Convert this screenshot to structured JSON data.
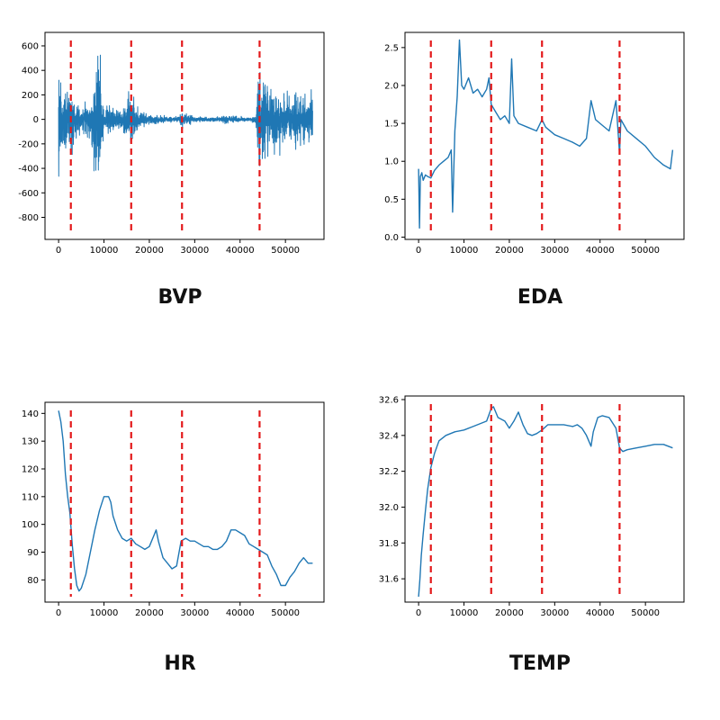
{
  "accent": "#1f77b4",
  "marker_color": "#e31a1c",
  "chart_data": [
    {
      "type": "line",
      "name": "BVP",
      "title": "BVP",
      "xlim": [
        -3000,
        58500
      ],
      "ylim": [
        -980,
        710
      ],
      "xticks": [
        0,
        10000,
        20000,
        30000,
        40000,
        50000
      ],
      "yticks": [
        -800,
        -600,
        -400,
        -200,
        0,
        200,
        400,
        600
      ],
      "markers": [
        2700,
        16000,
        27200,
        44300
      ],
      "signal": "noisy",
      "x": [
        0,
        500,
        1000,
        2000,
        2700,
        3500,
        5000,
        7000,
        8500,
        9000,
        10000,
        12000,
        14000,
        16000,
        17000,
        18000,
        20000,
        22000,
        24000,
        26000,
        27200,
        30000,
        33000,
        36000,
        37500,
        40000,
        42000,
        43500,
        44300,
        46000,
        48000,
        50000,
        52000,
        54000,
        56000
      ],
      "amp": [
        650,
        500,
        420,
        380,
        540,
        200,
        150,
        220,
        720,
        880,
        180,
        130,
        120,
        380,
        150,
        100,
        60,
        50,
        40,
        30,
        90,
        30,
        25,
        30,
        60,
        30,
        25,
        40,
        700,
        380,
        350,
        330,
        320,
        300,
        280
      ]
    },
    {
      "type": "line",
      "name": "EDA",
      "title": "EDA",
      "xlim": [
        -3000,
        58500
      ],
      "ylim": [
        -0.03,
        2.7
      ],
      "xticks": [
        0,
        10000,
        20000,
        30000,
        40000,
        50000
      ],
      "yticks": [
        0.0,
        0.5,
        1.0,
        1.5,
        2.0,
        2.5
      ],
      "markers": [
        2700,
        16000,
        27200,
        44300
      ],
      "x": [
        0,
        200,
        400,
        700,
        1000,
        1500,
        2000,
        2700,
        3500,
        4500,
        5500,
        6500,
        7200,
        7500,
        8000,
        8500,
        9000,
        9500,
        10000,
        11000,
        12000,
        13000,
        14000,
        15000,
        15500,
        16000,
        17000,
        18000,
        19000,
        20000,
        20500,
        21000,
        22000,
        24000,
        26000,
        27200,
        28000,
        30000,
        32000,
        34000,
        35500,
        37000,
        38000,
        39000,
        40000,
        42000,
        43500,
        44300,
        44600,
        46000,
        48000,
        50000,
        52000,
        54000,
        55500,
        56000
      ],
      "y": [
        0.9,
        0.12,
        0.8,
        0.85,
        0.75,
        0.82,
        0.8,
        0.78,
        0.88,
        0.95,
        1.0,
        1.05,
        1.15,
        0.33,
        1.4,
        1.85,
        2.6,
        2.0,
        1.95,
        2.1,
        1.9,
        1.95,
        1.85,
        1.95,
        2.1,
        1.75,
        1.65,
        1.55,
        1.6,
        1.5,
        2.35,
        1.6,
        1.5,
        1.45,
        1.4,
        1.55,
        1.45,
        1.35,
        1.3,
        1.25,
        1.2,
        1.3,
        1.8,
        1.55,
        1.5,
        1.4,
        1.8,
        1.1,
        1.55,
        1.4,
        1.3,
        1.2,
        1.05,
        0.95,
        0.9,
        1.15
      ]
    },
    {
      "type": "line",
      "name": "HR",
      "title": "HR",
      "xlim": [
        -3000,
        58500
      ],
      "ylim": [
        72,
        144
      ],
      "xticks": [
        0,
        10000,
        20000,
        30000,
        40000,
        50000
      ],
      "yticks": [
        80,
        90,
        100,
        110,
        120,
        130,
        140
      ],
      "markers": [
        2700,
        16000,
        27200,
        44300
      ],
      "x": [
        0,
        500,
        1000,
        1500,
        2000,
        2500,
        3000,
        3500,
        4000,
        4500,
        5000,
        6000,
        7000,
        8000,
        9000,
        10000,
        11000,
        11500,
        12000,
        13000,
        14000,
        15000,
        16000,
        17000,
        18000,
        19000,
        20000,
        21000,
        21500,
        22000,
        23000,
        24000,
        25000,
        26000,
        27000,
        28000,
        29000,
        30000,
        31000,
        32000,
        33000,
        34000,
        35000,
        36000,
        37000,
        38000,
        39000,
        40000,
        41000,
        42000,
        43000,
        44000,
        45000,
        46000,
        47000,
        48000,
        49000,
        50000,
        51000,
        52000,
        53000,
        54000,
        55000,
        56000
      ],
      "y": [
        141,
        137,
        130,
        118,
        110,
        104,
        93,
        84,
        78,
        76,
        77,
        82,
        90,
        98,
        105,
        110,
        110,
        108,
        103,
        98,
        95,
        94,
        95,
        93,
        92,
        91,
        92,
        96,
        98,
        94,
        88,
        86,
        84,
        85,
        94,
        95,
        94,
        94,
        93,
        92,
        92,
        91,
        91,
        92,
        94,
        98,
        98,
        97,
        96,
        93,
        92,
        91,
        90,
        89,
        85,
        82,
        78,
        78,
        81,
        83,
        86,
        88,
        86,
        86
      ]
    },
    {
      "type": "line",
      "name": "TEMP",
      "title": "TEMP",
      "xlim": [
        -3000,
        58500
      ],
      "ylim": [
        31.47,
        32.62
      ],
      "xticks": [
        0,
        10000,
        20000,
        30000,
        40000,
        50000
      ],
      "yticks": [
        31.6,
        31.8,
        32.0,
        32.2,
        32.4,
        32.6
      ],
      "markers": [
        2700,
        16000,
        27200,
        44300
      ],
      "x": [
        0,
        300,
        600,
        1000,
        1500,
        2000,
        2700,
        3500,
        4500,
        6000,
        8000,
        10000,
        12000,
        14000,
        15000,
        16000,
        16500,
        17500,
        19000,
        20000,
        21000,
        22000,
        23000,
        24000,
        25000,
        26000,
        27200,
        28500,
        30000,
        32000,
        34000,
        35000,
        36000,
        37000,
        38000,
        38500,
        39500,
        40500,
        42000,
        43500,
        44300,
        45000,
        46000,
        48000,
        50000,
        52000,
        54000,
        56000
      ],
      "y": [
        31.5,
        31.6,
        31.73,
        31.85,
        31.98,
        32.1,
        32.22,
        32.3,
        32.37,
        32.4,
        32.42,
        32.43,
        32.45,
        32.47,
        32.48,
        32.55,
        32.56,
        32.5,
        32.48,
        32.44,
        32.48,
        32.53,
        32.46,
        32.41,
        32.4,
        32.41,
        32.43,
        32.46,
        32.46,
        32.46,
        32.45,
        32.46,
        32.44,
        32.4,
        32.34,
        32.42,
        32.5,
        32.51,
        32.5,
        32.44,
        32.33,
        32.31,
        32.32,
        32.33,
        32.34,
        32.35,
        32.35,
        32.33
      ]
    }
  ]
}
